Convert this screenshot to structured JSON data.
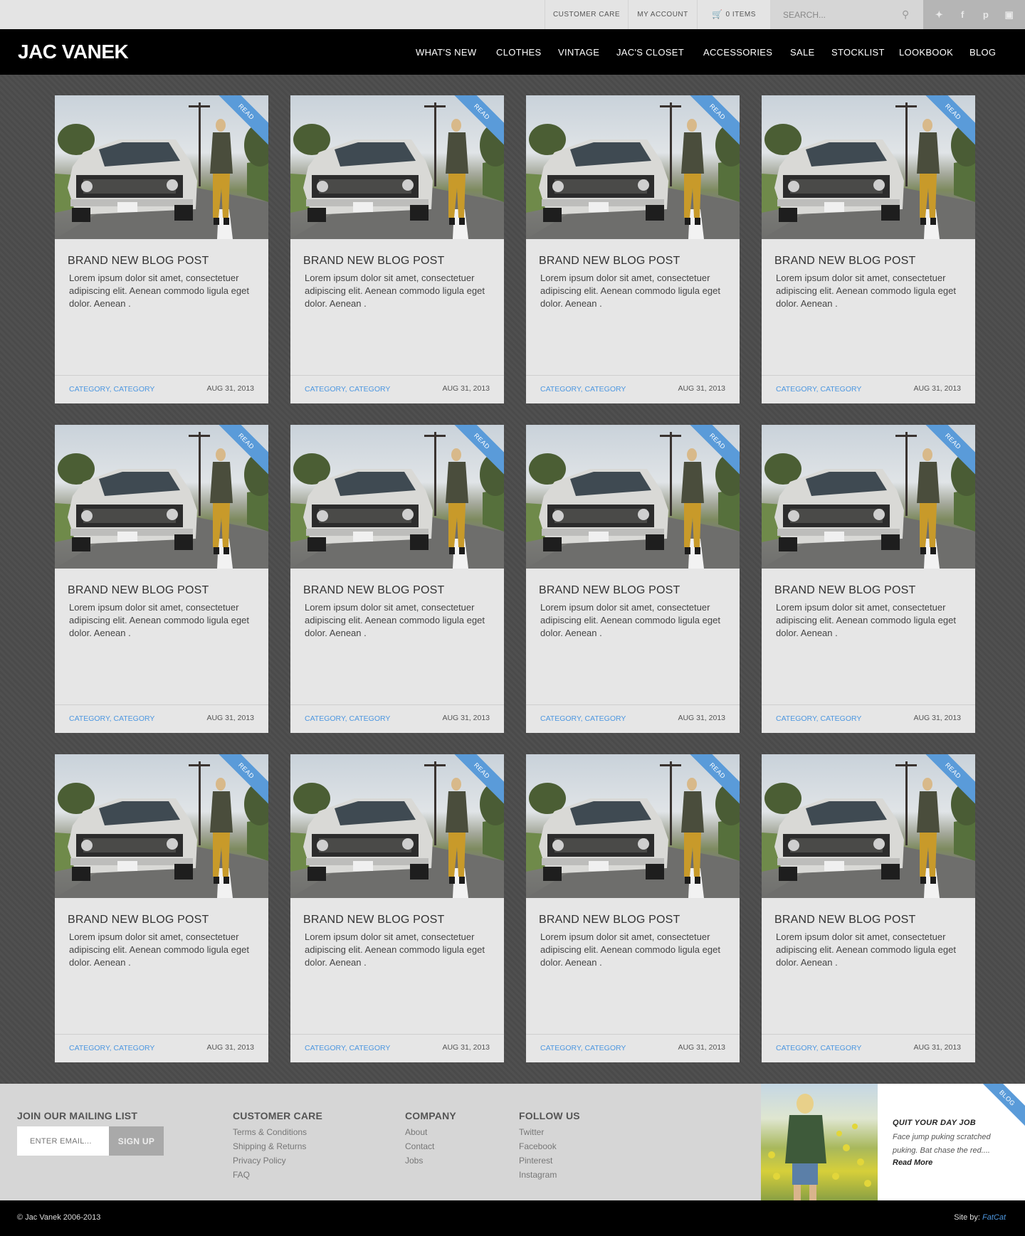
{
  "topbar": {
    "customer_care": "CUSTOMER CARE",
    "my_account": "MY ACCOUNT",
    "cart": "0 ITEMS",
    "search_placeholder": "SEARCH...",
    "social_icons": [
      "twitter-icon",
      "facebook-icon",
      "pinterest-icon",
      "instagram-icon"
    ]
  },
  "nav": {
    "logo": "JAC VANEK",
    "items": [
      "WHAT'S NEW",
      "CLOTHES",
      "VINTAGE",
      "JAC'S CLOSET",
      "ACCESSORIES",
      "SALE",
      "STOCKLIST",
      "LOOKBOOK",
      "BLOG"
    ]
  },
  "posts": [
    {
      "badge": "READ",
      "title": "BRAND NEW BLOG POST",
      "excerpt": "Lorem ipsum dolor sit amet, consectetuer adipiscing elit. Aenean commodo ligula eget dolor. Aenean .",
      "categories": [
        "CATEGORY",
        "CATEGORY"
      ],
      "date": "AUG 31, 2013"
    },
    {
      "badge": "READ",
      "title": "BRAND NEW BLOG POST",
      "excerpt": "Lorem ipsum dolor sit amet, consectetuer adipiscing elit. Aenean commodo ligula eget dolor. Aenean .",
      "categories": [
        "CATEGORY",
        "CATEGORY"
      ],
      "date": "AUG 31, 2013"
    },
    {
      "badge": "READ",
      "title": "BRAND NEW BLOG POST",
      "excerpt": "Lorem ipsum dolor sit amet, consectetuer adipiscing elit. Aenean commodo ligula eget dolor. Aenean .",
      "categories": [
        "CATEGORY",
        "CATEGORY"
      ],
      "date": "AUG 31, 2013"
    },
    {
      "badge": "READ",
      "title": "BRAND NEW BLOG POST",
      "excerpt": "Lorem ipsum dolor sit amet, consectetuer adipiscing elit. Aenean commodo ligula eget dolor. Aenean .",
      "categories": [
        "CATEGORY",
        "CATEGORY"
      ],
      "date": "AUG 31, 2013"
    },
    {
      "badge": "READ",
      "title": "BRAND NEW BLOG POST",
      "excerpt": "Lorem ipsum dolor sit amet, consectetuer adipiscing elit. Aenean commodo ligula eget dolor. Aenean .",
      "categories": [
        "CATEGORY",
        "CATEGORY"
      ],
      "date": "AUG 31, 2013"
    },
    {
      "badge": "READ",
      "title": "BRAND NEW BLOG POST",
      "excerpt": "Lorem ipsum dolor sit amet, consectetuer adipiscing elit. Aenean commodo ligula eget dolor. Aenean .",
      "categories": [
        "CATEGORY",
        "CATEGORY"
      ],
      "date": "AUG 31, 2013"
    },
    {
      "badge": "READ",
      "title": "BRAND NEW BLOG POST",
      "excerpt": "Lorem ipsum dolor sit amet, consectetuer adipiscing elit. Aenean commodo ligula eget dolor. Aenean .",
      "categories": [
        "CATEGORY",
        "CATEGORY"
      ],
      "date": "AUG 31, 2013"
    },
    {
      "badge": "READ",
      "title": "BRAND NEW BLOG POST",
      "excerpt": "Lorem ipsum dolor sit amet, consectetuer adipiscing elit. Aenean commodo ligula eget dolor. Aenean .",
      "categories": [
        "CATEGORY",
        "CATEGORY"
      ],
      "date": "AUG 31, 2013"
    },
    {
      "badge": "READ",
      "title": "BRAND NEW BLOG POST",
      "excerpt": "Lorem ipsum dolor sit amet, consectetuer adipiscing elit. Aenean commodo ligula eget dolor. Aenean .",
      "categories": [
        "CATEGORY",
        "CATEGORY"
      ],
      "date": "AUG 31, 2013"
    },
    {
      "badge": "READ",
      "title": "BRAND NEW BLOG POST",
      "excerpt": "Lorem ipsum dolor sit amet, consectetuer adipiscing elit. Aenean commodo ligula eget dolor. Aenean .",
      "categories": [
        "CATEGORY",
        "CATEGORY"
      ],
      "date": "AUG 31, 2013"
    },
    {
      "badge": "READ",
      "title": "BRAND NEW BLOG POST",
      "excerpt": "Lorem ipsum dolor sit amet, consectetuer adipiscing elit. Aenean commodo ligula eget dolor. Aenean .",
      "categories": [
        "CATEGORY",
        "CATEGORY"
      ],
      "date": "AUG 31, 2013"
    },
    {
      "badge": "READ",
      "title": "BRAND NEW BLOG POST",
      "excerpt": "Lorem ipsum dolor sit amet, consectetuer adipiscing elit. Aenean commodo ligula eget dolor. Aenean .",
      "categories": [
        "CATEGORY",
        "CATEGORY"
      ],
      "date": "AUG 31, 2013"
    }
  ],
  "footer": {
    "mailing": {
      "title": "JOIN OUR MAILING LIST",
      "placeholder": "ENTER EMAIL...",
      "button": "SIGN UP"
    },
    "customer_care": {
      "title": "CUSTOMER CARE",
      "links": [
        "Terms & Conditions",
        "Shipping & Returns",
        "Privacy Policy",
        "FAQ"
      ]
    },
    "company": {
      "title": "COMPANY",
      "links": [
        "About",
        "Contact",
        "Jobs"
      ]
    },
    "follow": {
      "title": "FOLLOW US",
      "links": [
        "Twitter",
        "Facebook",
        "Pinterest",
        "Instagram"
      ]
    },
    "promo": {
      "badge": "BLOG",
      "title": "QUIT YOUR DAY JOB",
      "text": "Face jump puking scratched puking. Bat chase the red....",
      "more": "Read More"
    }
  },
  "bottom": {
    "copyright": "© Jac Vanek 2006-2013",
    "siteby_label": "Site by:",
    "siteby_name": "FatCat"
  },
  "colors": {
    "accent": "#5a9bd9",
    "link": "#4d97e0",
    "nav_bg": "#000000",
    "card_bg": "#e6e6e6"
  }
}
